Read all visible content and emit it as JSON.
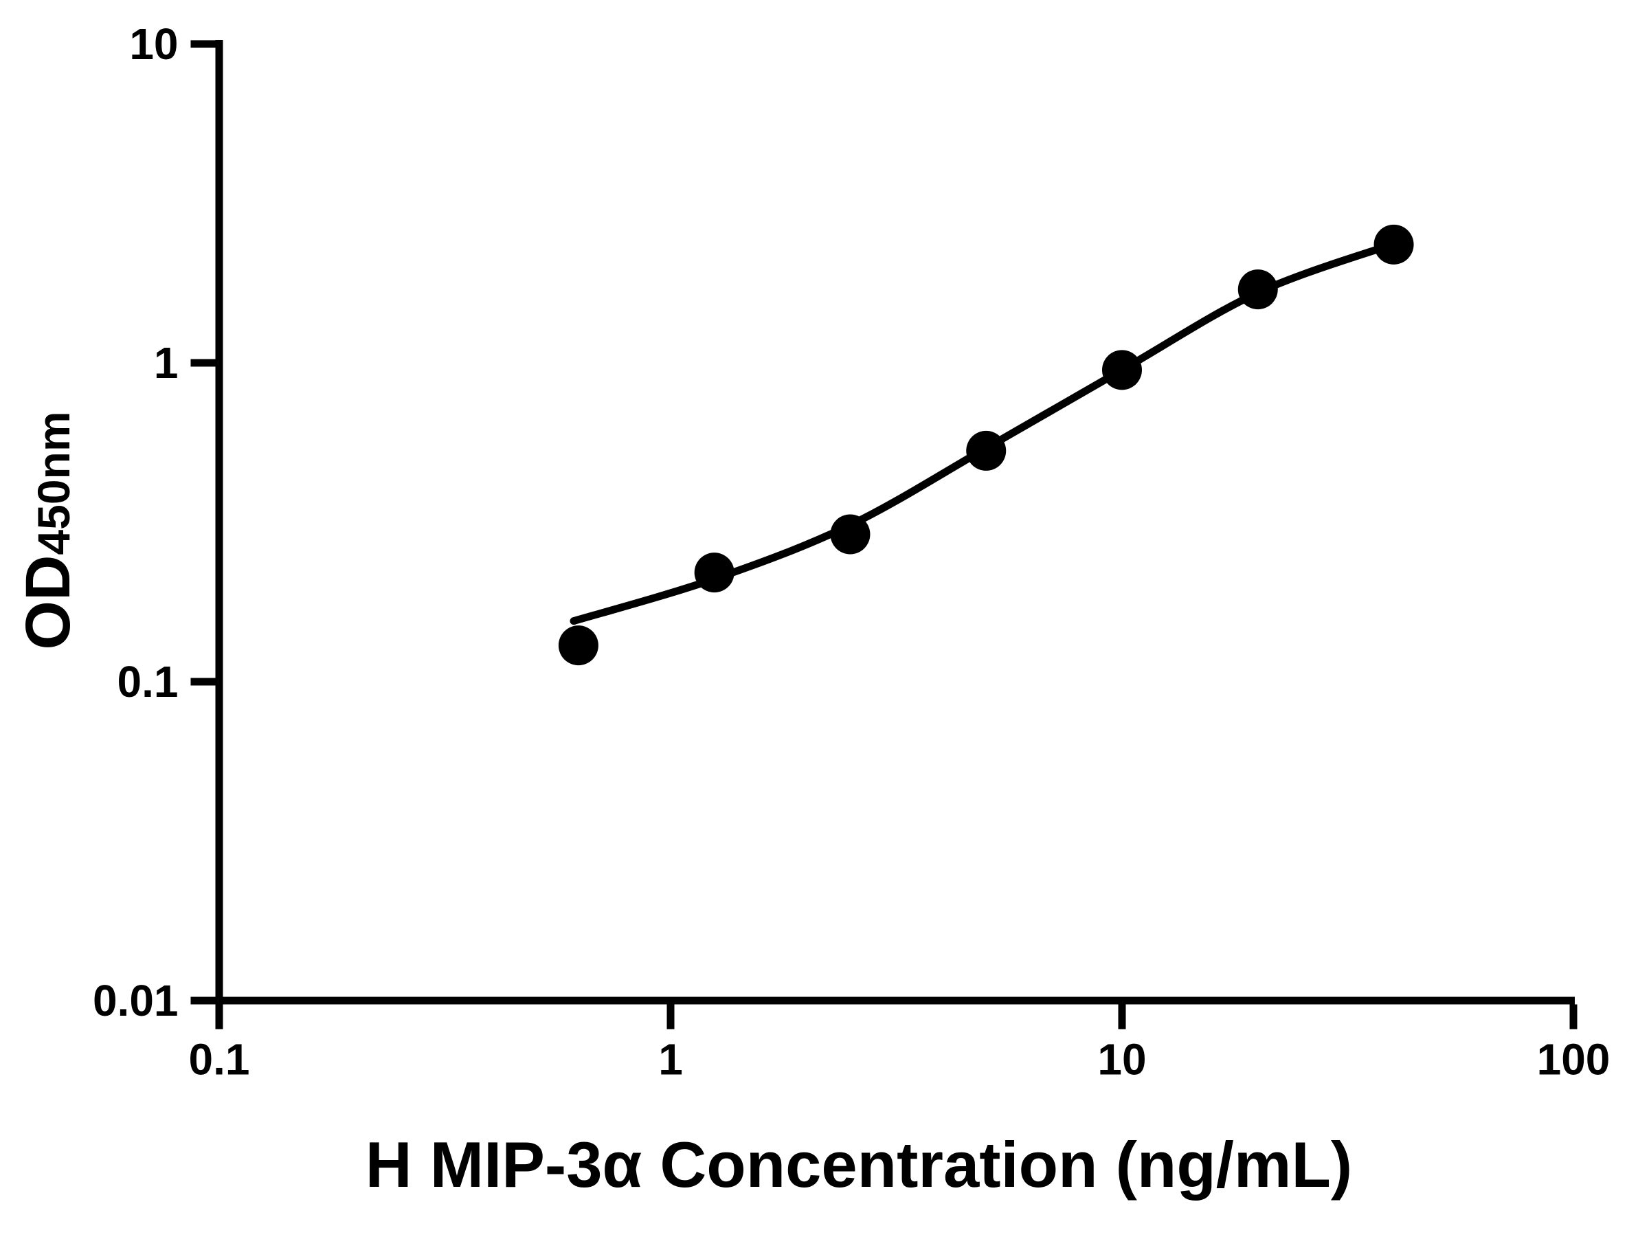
{
  "figure": {
    "background_color": "#ffffff",
    "ink_color": "#000000"
  },
  "chart_data": {
    "type": "scatter",
    "title": "",
    "xlabel": "H MIP-3α Concentration (ng/mL)",
    "ylabel": "OD450nm",
    "ylabel_main": "OD",
    "ylabel_subscript": "450nm",
    "x_scale": "log",
    "y_scale": "log",
    "xlim": [
      0.1,
      100
    ],
    "ylim": [
      0.01,
      10
    ],
    "grid": false,
    "legend_position": "none",
    "x_ticks": [
      {
        "value": 0.1,
        "label": "0.1"
      },
      {
        "value": 1,
        "label": "1"
      },
      {
        "value": 10,
        "label": "10"
      },
      {
        "value": 100,
        "label": "100"
      }
    ],
    "y_ticks": [
      {
        "value": 10,
        "label": "10"
      },
      {
        "value": 1,
        "label": "1"
      },
      {
        "value": 0.1,
        "label": "0.1"
      },
      {
        "value": 0.01,
        "label": "0.01"
      }
    ],
    "series": [
      {
        "name": "standard-curve-measurements",
        "marker": "filled-circle",
        "color": "#000000",
        "points": [
          {
            "x": 0.625,
            "y": 0.13
          },
          {
            "x": 1.25,
            "y": 0.22
          },
          {
            "x": 2.5,
            "y": 0.29
          },
          {
            "x": 5,
            "y": 0.53
          },
          {
            "x": 10,
            "y": 0.95
          },
          {
            "x": 20,
            "y": 1.7
          },
          {
            "x": 40,
            "y": 2.35
          }
        ]
      }
    ],
    "fit_curve": {
      "name": "four-parameter-logistic-fit",
      "color": "#000000",
      "anchors": [
        {
          "x": 0.61,
          "y": 0.155
        },
        {
          "x": 1.25,
          "y": 0.21
        },
        {
          "x": 2.5,
          "y": 0.31
        },
        {
          "x": 5,
          "y": 0.54
        },
        {
          "x": 10,
          "y": 0.95
        },
        {
          "x": 20,
          "y": 1.66
        },
        {
          "x": 40,
          "y": 2.36
        }
      ]
    }
  }
}
